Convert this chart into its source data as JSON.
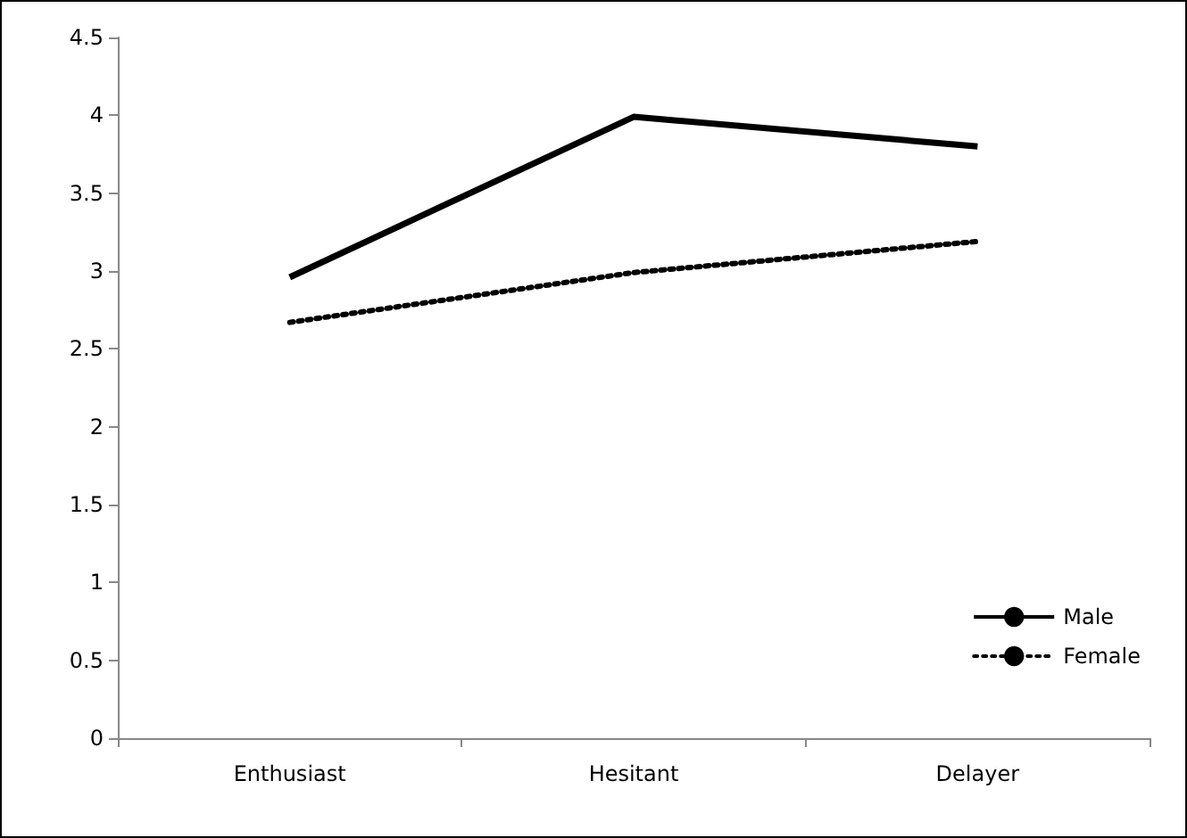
{
  "chart_data": {
    "type": "line",
    "categories": [
      "Enthusiast",
      "Hesitant",
      "Delayer"
    ],
    "series": [
      {
        "name": "Male",
        "color": "#000000",
        "line_style": "solid",
        "values": [
          2.96,
          3.99,
          3.8
        ]
      },
      {
        "name": "Female",
        "color": "#000000",
        "line_style": "dotted",
        "values": [
          2.67,
          2.99,
          3.19
        ]
      }
    ],
    "ylim": [
      0,
      4.5
    ],
    "yticks": [
      0,
      0.5,
      1,
      1.5,
      2,
      2.5,
      3,
      3.5,
      4,
      4.5
    ],
    "grid": false,
    "legend": "bottom right",
    "marker": "none"
  }
}
